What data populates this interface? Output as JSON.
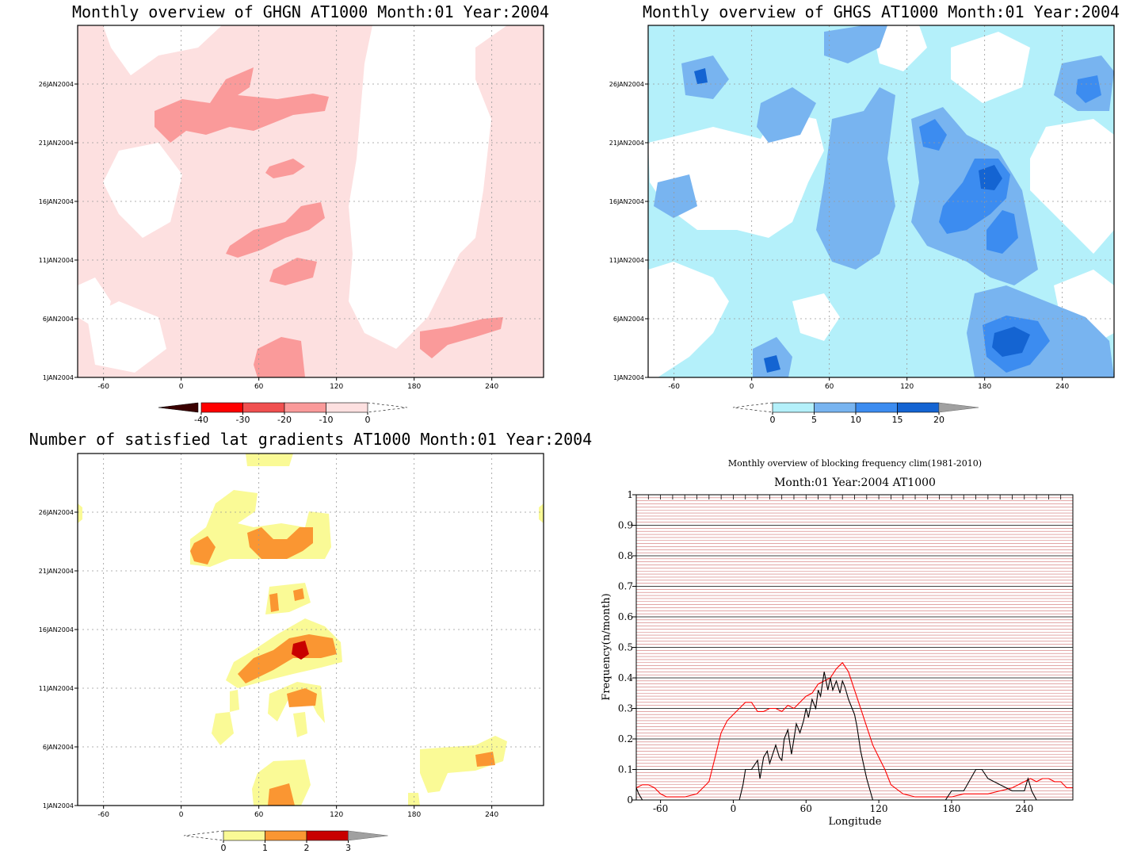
{
  "chart_data": [
    {
      "id": "ghgn",
      "type": "heatmap",
      "title": "Monthly overview of GHGN AT1000 Month:01 Year:2004",
      "x_ticks": [
        -60,
        0,
        60,
        120,
        180,
        240
      ],
      "y_ticks": [
        "1JAN2004",
        "6JAN2004",
        "11JAN2004",
        "16JAN2004",
        "21JAN2004",
        "26JAN2004"
      ],
      "colorbar": {
        "ticks": [
          "-40",
          "-30",
          "-20",
          "-10",
          "0"
        ],
        "colors": [
          "#c00000",
          "#f03c3c",
          "#fa8c8c",
          "#fcd0d0"
        ]
      }
    },
    {
      "id": "ghgs",
      "type": "heatmap",
      "title": "Monthly overview of GHGS AT1000 Month:01 Year:2004",
      "x_ticks": [
        -60,
        0,
        60,
        120,
        180,
        240
      ],
      "y_ticks": [
        "1JAN2004",
        "6JAN2004",
        "11JAN2004",
        "16JAN2004",
        "21JAN2004",
        "26JAN2004"
      ],
      "colorbar": {
        "ticks": [
          "0",
          "5",
          "10",
          "15",
          "20"
        ],
        "colors": [
          "#b4f0fa",
          "#78b4f0",
          "#3c8cf0",
          "#1464d2"
        ]
      }
    },
    {
      "id": "gradients",
      "type": "heatmap",
      "title": "Number of satisfied lat gradients AT1000 Month:01 Year:2004",
      "x_ticks": [
        -60,
        0,
        60,
        120,
        180,
        240
      ],
      "y_ticks": [
        "1JAN2004",
        "6JAN2004",
        "11JAN2004",
        "16JAN2004",
        "21JAN2004",
        "26JAN2004"
      ],
      "colorbar": {
        "ticks": [
          "0",
          "1",
          "2",
          "3"
        ],
        "colors": [
          "#fafa96",
          "#fa9632",
          "#c80000"
        ]
      }
    },
    {
      "id": "blocking",
      "type": "line",
      "title": "Monthly overview of blocking frequency clim(1981-2010)",
      "subtitle": "Month:01 Year:2004  AT1000",
      "xlabel": "Longitude",
      "ylabel": "Frequency(n/month)",
      "xlim": [
        -80,
        280
      ],
      "ylim": [
        0,
        1
      ],
      "x_ticks": [
        -60,
        0,
        60,
        120,
        180,
        240
      ],
      "y_ticks": [
        0,
        0.1,
        0.2,
        0.3,
        0.4,
        0.5,
        0.6,
        0.7,
        0.8,
        0.9,
        1
      ],
      "grid": true,
      "series": [
        {
          "color": "#ff0000",
          "x": [
            -80,
            -75,
            -70,
            -65,
            -60,
            -55,
            -50,
            -40,
            -30,
            -20,
            -15,
            -10,
            -5,
            0,
            5,
            10,
            15,
            20,
            25,
            30,
            35,
            40,
            45,
            50,
            55,
            60,
            65,
            70,
            75,
            80,
            85,
            90,
            95,
            100,
            105,
            110,
            115,
            120,
            125,
            130,
            140,
            150,
            160,
            170,
            180,
            190,
            200,
            210,
            220,
            230,
            240,
            245,
            250,
            255,
            260,
            265,
            270,
            275,
            280
          ],
          "y": [
            0.04,
            0.05,
            0.05,
            0.04,
            0.02,
            0.01,
            0.01,
            0.01,
            0.02,
            0.06,
            0.14,
            0.22,
            0.26,
            0.28,
            0.3,
            0.32,
            0.32,
            0.29,
            0.29,
            0.3,
            0.3,
            0.29,
            0.31,
            0.3,
            0.32,
            0.34,
            0.35,
            0.38,
            0.39,
            0.4,
            0.43,
            0.45,
            0.42,
            0.36,
            0.3,
            0.24,
            0.18,
            0.14,
            0.1,
            0.05,
            0.02,
            0.01,
            0.01,
            0.01,
            0.01,
            0.02,
            0.02,
            0.02,
            0.03,
            0.04,
            0.06,
            0.07,
            0.06,
            0.07,
            0.07,
            0.06,
            0.06,
            0.04,
            0.04
          ]
        },
        {
          "color": "#000000",
          "x": [
            -80,
            -78,
            -75,
            -70,
            0,
            5,
            8,
            10,
            15,
            20,
            22,
            25,
            28,
            30,
            35,
            38,
            40,
            42,
            45,
            48,
            50,
            52,
            55,
            58,
            60,
            62,
            65,
            68,
            70,
            72,
            75,
            78,
            80,
            82,
            85,
            88,
            90,
            92,
            95,
            98,
            100,
            102,
            105,
            110,
            115,
            120,
            175,
            180,
            190,
            200,
            205,
            210,
            230,
            240,
            243,
            246,
            250,
            255
          ],
          "y": [
            0.04,
            0.02,
            0.0,
            0.0,
            0.0,
            0.0,
            0.05,
            0.1,
            0.1,
            0.13,
            0.07,
            0.14,
            0.16,
            0.12,
            0.18,
            0.14,
            0.13,
            0.2,
            0.23,
            0.15,
            0.2,
            0.25,
            0.22,
            0.26,
            0.3,
            0.27,
            0.33,
            0.3,
            0.36,
            0.34,
            0.42,
            0.36,
            0.4,
            0.36,
            0.39,
            0.35,
            0.39,
            0.37,
            0.33,
            0.3,
            0.28,
            0.24,
            0.16,
            0.07,
            0.0,
            0.0,
            0.0,
            0.03,
            0.03,
            0.1,
            0.1,
            0.07,
            0.03,
            0.03,
            0.07,
            0.03,
            0.0,
            0.0
          ]
        }
      ]
    }
  ]
}
